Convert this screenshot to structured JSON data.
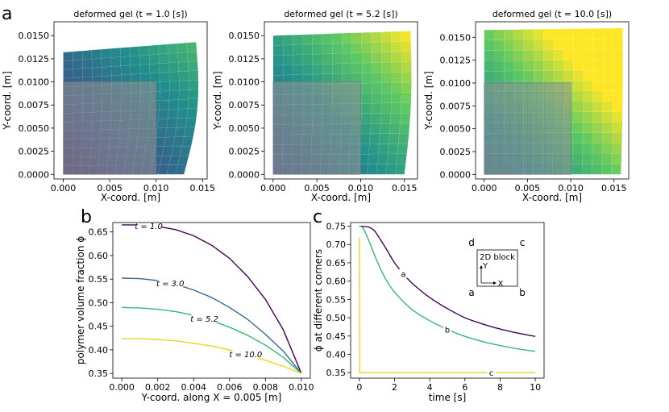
{
  "panels": {
    "a": "a",
    "b": "b",
    "c": "c"
  },
  "chart_data": [
    {
      "type": "heatmap",
      "id": "gel1",
      "title": "deformed gel (t = 1.0 [s])",
      "xlabel": "X-coord. [m]",
      "ylabel": "Y-coord. [m]",
      "xticks": [
        "0.000",
        "0.005",
        "0.010",
        "0.015"
      ],
      "yticks": [
        "0.0000",
        "0.0025",
        "0.0050",
        "0.0075",
        "0.0100",
        "0.0125",
        "0.0150"
      ],
      "xlim": [
        -0.001,
        0.0155
      ],
      "ylim": [
        -0.0005,
        0.0165
      ],
      "outline": {
        "bottom_right_x": 0.013,
        "top_left_y": 0.0132,
        "top_right": [
          0.0143,
          0.0143
        ]
      },
      "undeformed": {
        "width": 0.01,
        "height": 0.01
      }
    },
    {
      "type": "heatmap",
      "id": "gel2",
      "title": "deformed gel (t = 5.2 [s])",
      "xlabel": "X-coord. [m]",
      "ylabel": "Y-coord. [m]",
      "xticks": [
        "0.000",
        "0.005",
        "0.010",
        "0.015"
      ],
      "yticks": [
        "0.0000",
        "0.0025",
        "0.0050",
        "0.0075",
        "0.0100",
        "0.0125",
        "0.0150"
      ],
      "xlim": [
        -0.001,
        0.0165
      ],
      "ylim": [
        -0.0005,
        0.0165
      ],
      "outline": {
        "bottom_right_x": 0.015,
        "top_left_y": 0.015,
        "top_right": [
          0.0157,
          0.0155
        ]
      },
      "undeformed": {
        "width": 0.01,
        "height": 0.01
      }
    },
    {
      "type": "heatmap",
      "id": "gel3",
      "title": "deformed gel (t = 10.0 [s])",
      "xlabel": "X-coord. [m]",
      "ylabel": "Y-coord. [m]",
      "xticks": [
        "0.000",
        "0.005",
        "0.010",
        "0.015"
      ],
      "yticks": [
        "0.0000",
        "0.0025",
        "0.0050",
        "0.0075",
        "0.0100",
        "0.0125",
        "0.0150"
      ],
      "xlim": [
        -0.001,
        0.0167
      ],
      "ylim": [
        -0.0005,
        0.0167
      ],
      "outline": {
        "bottom_right_x": 0.0158,
        "top_left_y": 0.0158,
        "top_right": [
          0.016,
          0.016
        ]
      },
      "undeformed": {
        "width": 0.01,
        "height": 0.01
      }
    },
    {
      "type": "line",
      "id": "profiles",
      "xlabel": "Y-coord. along X = 0.005 [m]",
      "ylabel": "polymer volume fraction ϕ",
      "xlim": [
        -0.0005,
        0.0105
      ],
      "ylim": [
        0.34,
        0.67
      ],
      "xticks": [
        0.0,
        0.002,
        0.004,
        0.006,
        0.008,
        0.01
      ],
      "xtick_labels": [
        "0.000",
        "0.002",
        "0.004",
        "0.006",
        "0.008",
        "0.010"
      ],
      "yticks": [
        0.35,
        0.4,
        0.45,
        0.5,
        0.55,
        0.6,
        0.65
      ],
      "ytick_labels": [
        "0.35",
        "0.40",
        "0.45",
        "0.50",
        "0.55",
        "0.60",
        "0.65"
      ],
      "x": [
        0.0,
        0.001,
        0.002,
        0.003,
        0.004,
        0.005,
        0.006,
        0.007,
        0.008,
        0.009,
        0.01
      ],
      "series": [
        {
          "name": "t = 1.0",
          "color": "#440154",
          "label_x": 0.0015,
          "values": [
            0.665,
            0.665,
            0.662,
            0.655,
            0.642,
            0.622,
            0.594,
            0.556,
            0.507,
            0.442,
            0.35
          ]
        },
        {
          "name": "t = 3.0",
          "color": "#31688e",
          "label_x": 0.0027,
          "values": [
            0.552,
            0.551,
            0.547,
            0.539,
            0.527,
            0.511,
            0.49,
            0.465,
            0.433,
            0.397,
            0.35
          ]
        },
        {
          "name": "t = 5.2",
          "color": "#35b779",
          "label_x": 0.0046,
          "values": [
            0.49,
            0.489,
            0.486,
            0.481,
            0.473,
            0.462,
            0.448,
            0.431,
            0.41,
            0.384,
            0.35
          ]
        },
        {
          "name": "t = 10.0",
          "color": "#e7d722",
          "label_x": 0.0069,
          "values": [
            0.424,
            0.424,
            0.422,
            0.419,
            0.414,
            0.408,
            0.4,
            0.39,
            0.378,
            0.365,
            0.35
          ]
        }
      ]
    },
    {
      "type": "line",
      "id": "corners",
      "xlabel": "time [s]",
      "ylabel": "ϕ at different corners",
      "xlim": [
        -0.5,
        10.5
      ],
      "ylim": [
        0.335,
        0.76
      ],
      "xticks": [
        0,
        2,
        4,
        6,
        8,
        10
      ],
      "xtick_labels": [
        "0",
        "2",
        "4",
        "6",
        "8",
        "10"
      ],
      "yticks": [
        0.35,
        0.4,
        0.45,
        0.5,
        0.55,
        0.6,
        0.65,
        0.7,
        0.75
      ],
      "ytick_labels": [
        "0.35",
        "0.40",
        "0.45",
        "0.50",
        "0.55",
        "0.60",
        "0.65",
        "0.70",
        "0.75"
      ],
      "series": [
        {
          "name": "a",
          "color": "#440154",
          "label_x": 2.5,
          "points": [
            [
              0.0,
              0.75
            ],
            [
              0.5,
              0.748
            ],
            [
              0.8,
              0.74
            ],
            [
              1.0,
              0.728
            ],
            [
              1.5,
              0.69
            ],
            [
              2.0,
              0.65
            ],
            [
              2.5,
              0.62
            ],
            [
              3.0,
              0.594
            ],
            [
              4.0,
              0.555
            ],
            [
              5.0,
              0.525
            ],
            [
              6.0,
              0.5
            ],
            [
              7.0,
              0.483
            ],
            [
              8.0,
              0.469
            ],
            [
              9.0,
              0.458
            ],
            [
              10.0,
              0.449
            ]
          ]
        },
        {
          "name": "b",
          "color": "#35b779",
          "label_x": 5.0,
          "points": [
            [
              0.0,
              0.75
            ],
            [
              0.2,
              0.745
            ],
            [
              0.5,
              0.715
            ],
            [
              1.0,
              0.655
            ],
            [
              1.5,
              0.605
            ],
            [
              2.0,
              0.57
            ],
            [
              3.0,
              0.522
            ],
            [
              4.0,
              0.492
            ],
            [
              5.0,
              0.468
            ],
            [
              6.0,
              0.449
            ],
            [
              7.0,
              0.435
            ],
            [
              8.0,
              0.424
            ],
            [
              9.0,
              0.415
            ],
            [
              10.0,
              0.408
            ]
          ]
        },
        {
          "name": "c",
          "color": "#e7d722",
          "label_x": 7.5,
          "points": [
            [
              0.0,
              0.72
            ],
            [
              0.02,
              0.35
            ],
            [
              10.0,
              0.35
            ]
          ]
        }
      ],
      "inset": {
        "title": "2D block",
        "x_axis": "X",
        "y_axis": "Y",
        "corners": [
          "a",
          "b",
          "c",
          "d"
        ]
      }
    }
  ]
}
